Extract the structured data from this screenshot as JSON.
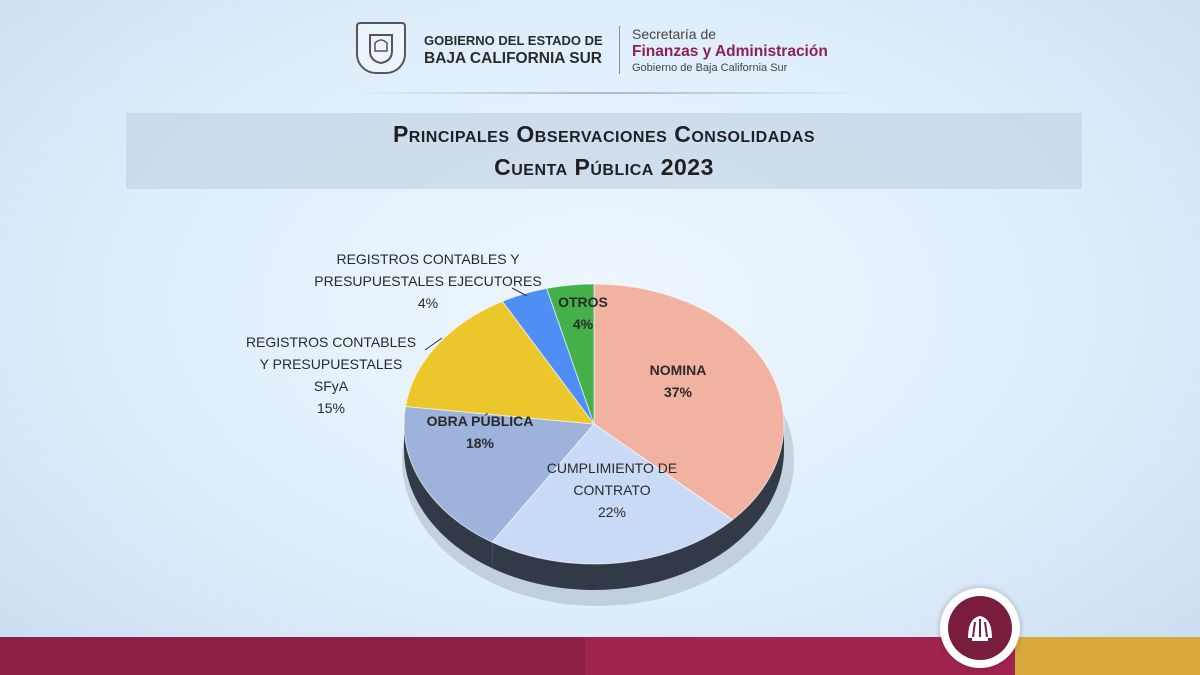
{
  "header": {
    "gov_line1": "GOBIERNO DEL ESTADO DE",
    "gov_line2": "BAJA CALIFORNIA SUR",
    "sec_line1": "Secretaría de",
    "sec_line2": "Finanzas y Administración",
    "sec_line3": "Gobierno de Baja California Sur"
  },
  "colors": {
    "brand": "#8c1f46",
    "gold": "#d9a83c"
  },
  "chart_data": {
    "type": "pie",
    "title": "Principales Observaciones Consolidadas",
    "subtitle": "Cuenta Pública 2023",
    "slices": [
      {
        "label": "NOMINA",
        "value": 37,
        "color": "#f2b2a2"
      },
      {
        "label": "CUMPLIMIENTO DE CONTRATO",
        "value": 22,
        "color": "#c9daf6"
      },
      {
        "label": "OBRA PÚBLICA",
        "value": 18,
        "color": "#9db3db"
      },
      {
        "label": "REGISTROS CONTABLES Y PRESUPUESTALES SFyA",
        "value": 15,
        "color": "#ecc72c"
      },
      {
        "label": "REGISTROS CONTABLES Y PRESUPUESTALES EJECUTORES",
        "value": 4,
        "color": "#4f8ef5"
      },
      {
        "label": "OTROS",
        "value": 4,
        "color": "#43b04a"
      }
    ],
    "labels": {
      "nomina": [
        "NOMINA",
        "37%"
      ],
      "cumplimiento": [
        "CUMPLIMIENTO DE",
        "CONTRATO",
        "22%"
      ],
      "obra": [
        "OBRA PÚBLICA",
        "18%"
      ],
      "sfya": [
        "REGISTROS CONTABLES",
        "Y PRESUPUESTALES",
        "SFyA",
        "15%"
      ],
      "ejecutores": [
        "REGISTROS CONTABLES Y",
        "PRESUPUESTALES EJECUTORES",
        "4%"
      ],
      "otros": [
        "OTROS",
        "4%"
      ]
    }
  }
}
